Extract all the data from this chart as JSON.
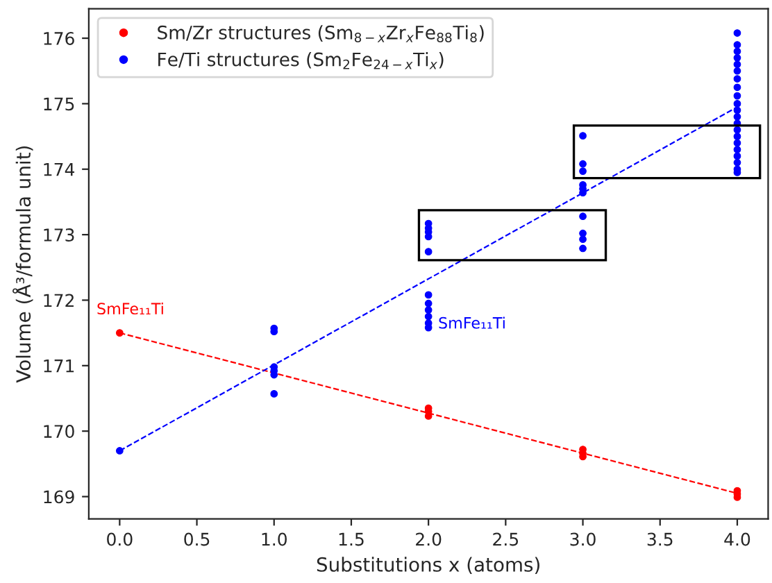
{
  "chart_data": {
    "type": "scatter",
    "xlabel": "Substitutions x (atoms)",
    "ylabel": "Volume (Å³/formula unit)",
    "xlim": [
      -0.2,
      4.2
    ],
    "ylim": [
      168.66,
      176.45
    ],
    "xticks": [
      {
        "value": 0,
        "label": "0.0"
      },
      {
        "value": 0.5,
        "label": "0.5"
      },
      {
        "value": 1,
        "label": "1.0"
      },
      {
        "value": 1.5,
        "label": "1.5"
      },
      {
        "value": 2,
        "label": "2.0"
      },
      {
        "value": 2.5,
        "label": "2.5"
      },
      {
        "value": 3,
        "label": "3.0"
      },
      {
        "value": 3.5,
        "label": "3.5"
      },
      {
        "value": 4,
        "label": "4.0"
      }
    ],
    "yticks": [
      169,
      170,
      171,
      172,
      173,
      174,
      175,
      176
    ],
    "grid": false,
    "legend": "top left",
    "series": [
      {
        "name": "Sm/Zr structures (Sm$_{8−x}$Zr$_{x}$Fe$_{88}$Ti$_{8}$)",
        "color": "#ff0000",
        "marker": "circle",
        "x": [
          0,
          2,
          2,
          2,
          3,
          3,
          3,
          4,
          4,
          4
        ],
        "values": [
          171.5,
          170.35,
          170.3,
          170.23,
          169.72,
          169.66,
          169.61,
          169.09,
          169.04,
          168.99
        ]
      },
      {
        "name": "Fe/Ti structures (Sm$_{2}$Fe$_{24−x}$Ti$_{x}$)",
        "color": "#0000ff",
        "marker": "circle",
        "x": [
          0,
          1,
          1,
          1,
          1,
          1,
          1,
          2,
          2,
          2,
          2,
          2,
          2,
          2,
          2,
          2,
          2,
          2,
          3,
          3,
          3,
          3,
          3,
          3,
          3,
          3,
          3,
          3,
          4,
          4,
          4,
          4,
          4,
          4,
          4,
          4,
          4,
          4,
          4,
          4,
          4,
          4,
          4,
          4,
          4,
          4,
          4,
          4,
          4
        ],
        "values": [
          169.7,
          171.57,
          171.52,
          170.98,
          170.92,
          170.86,
          170.57,
          173.17,
          173.1,
          173.04,
          172.97,
          172.74,
          172.08,
          171.95,
          171.85,
          171.75,
          171.65,
          171.58,
          174.51,
          174.08,
          173.97,
          173.76,
          173.7,
          173.64,
          173.28,
          173.02,
          172.93,
          172.79,
          176.08,
          175.9,
          175.8,
          175.7,
          175.6,
          175.5,
          175.38,
          175.25,
          175.12,
          175.0,
          174.9,
          174.8,
          174.7,
          174.6,
          174.5,
          174.4,
          174.3,
          174.2,
          174.1,
          174.0,
          173.95
        ]
      },
      {
        "type": "line",
        "color": "#ff0000",
        "marker": "none",
        "line_style": "dashed",
        "x": [
          0,
          4
        ],
        "values": [
          171.5,
          169.05
        ]
      },
      {
        "type": "line",
        "color": "#0000ff",
        "marker": "none",
        "line_style": "dashed",
        "x": [
          0,
          4
        ],
        "values": [
          169.7,
          174.95
        ]
      }
    ],
    "annotations": [
      {
        "text": "SmFe₁₁Ti",
        "x": 0,
        "y": 171.5
      },
      {
        "text": "SmFe₁₁Ti",
        "x": 2,
        "y": 171.75
      }
    ]
  }
}
